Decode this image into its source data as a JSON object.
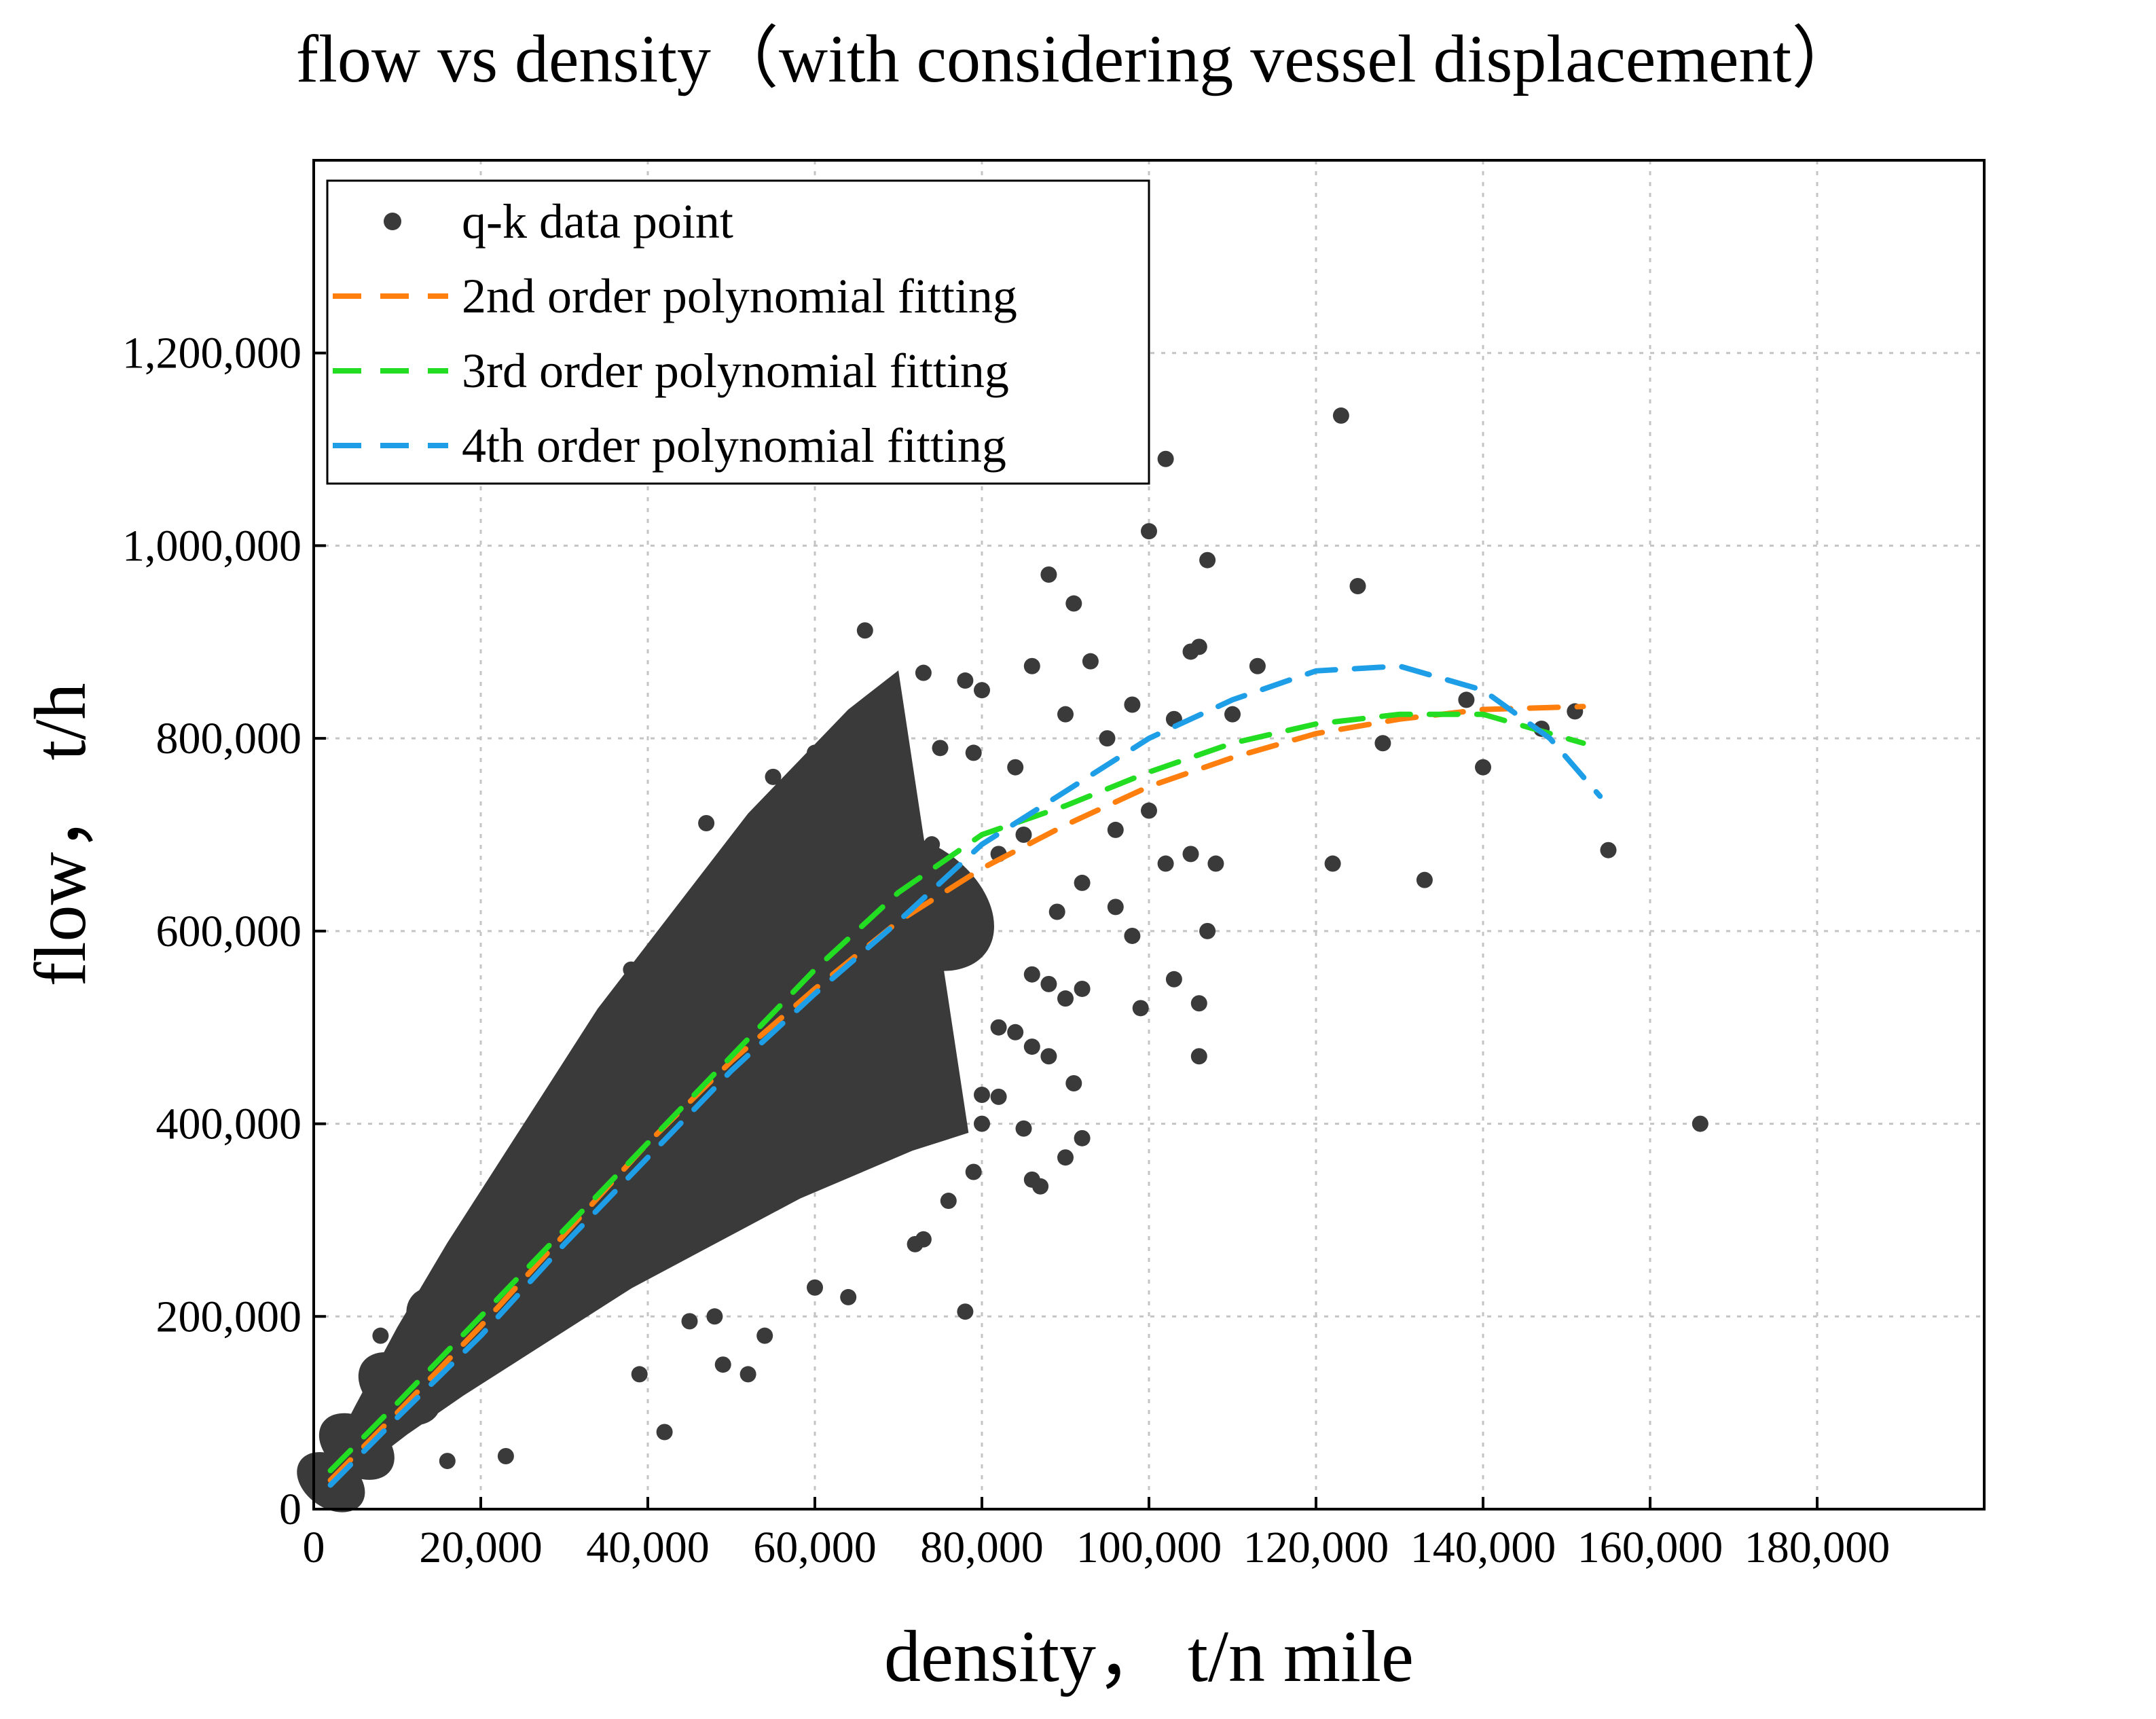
{
  "chart_data": {
    "type": "scatter",
    "title": "flow vs density（with considering vessel displacement）",
    "xlabel": "density，  t/n mile",
    "ylabel": "flow，  t/h",
    "xlim": [
      0,
      200000
    ],
    "ylim": [
      0,
      1400000
    ],
    "x_ticks": [
      0,
      20000,
      40000,
      60000,
      80000,
      100000,
      120000,
      140000,
      160000,
      180000
    ],
    "x_tick_labels": [
      "0",
      "20,000",
      "40,000",
      "60,000",
      "80,000",
      "100,000",
      "120,000",
      "140,000",
      "160,000",
      "180,000"
    ],
    "y_ticks": [
      0,
      200000,
      400000,
      600000,
      800000,
      1000000,
      1200000
    ],
    "y_tick_labels": [
      "0",
      "200,000",
      "400,000",
      "600,000",
      "800,000",
      "1,000,000",
      "1,200,000"
    ],
    "grid": true,
    "legend_position": "top-left",
    "legend": [
      {
        "label": "q-k data point",
        "color": "#3a3a3a",
        "marker": "dot"
      },
      {
        "label": "2nd order polynomial fitting",
        "color": "#ff7f0e",
        "marker": "dash"
      },
      {
        "label": "3rd order polynomial fitting",
        "color": "#22dd22",
        "marker": "dash"
      },
      {
        "label": "4th order polynomial fitting",
        "color": "#1f9ee8",
        "marker": "dash"
      }
    ],
    "scatter_points": [
      [
        123000,
        1135000
      ],
      [
        102000,
        1090000
      ],
      [
        100000,
        1015000
      ],
      [
        107000,
        985000
      ],
      [
        88000,
        970000
      ],
      [
        125000,
        958000
      ],
      [
        91000,
        940000
      ],
      [
        66000,
        912000
      ],
      [
        106000,
        895000
      ],
      [
        105000,
        890000
      ],
      [
        73000,
        868000
      ],
      [
        78000,
        860000
      ],
      [
        113000,
        875000
      ],
      [
        93000,
        880000
      ],
      [
        86000,
        875000
      ],
      [
        80000,
        850000
      ],
      [
        90000,
        825000
      ],
      [
        98000,
        835000
      ],
      [
        103000,
        820000
      ],
      [
        110000,
        825000
      ],
      [
        60000,
        785000
      ],
      [
        55000,
        760000
      ],
      [
        68000,
        770000
      ],
      [
        75000,
        790000
      ],
      [
        79000,
        785000
      ],
      [
        84000,
        770000
      ],
      [
        95000,
        800000
      ],
      [
        138000,
        840000
      ],
      [
        128000,
        795000
      ],
      [
        140000,
        770000
      ],
      [
        147000,
        810000
      ],
      [
        151000,
        828000
      ],
      [
        82000,
        680000
      ],
      [
        85000,
        700000
      ],
      [
        96000,
        705000
      ],
      [
        100000,
        725000
      ],
      [
        102000,
        670000
      ],
      [
        105000,
        680000
      ],
      [
        108000,
        670000
      ],
      [
        89000,
        620000
      ],
      [
        96000,
        625000
      ],
      [
        92000,
        650000
      ],
      [
        98000,
        595000
      ],
      [
        107000,
        600000
      ],
      [
        103000,
        550000
      ],
      [
        106000,
        525000
      ],
      [
        99000,
        520000
      ],
      [
        106000,
        470000
      ],
      [
        122000,
        670000
      ],
      [
        133000,
        653000
      ],
      [
        155000,
        684000
      ],
      [
        166000,
        400000
      ],
      [
        47000,
        712000
      ],
      [
        52000,
        640000
      ],
      [
        44000,
        598000
      ],
      [
        38000,
        560000
      ],
      [
        86000,
        555000
      ],
      [
        88000,
        545000
      ],
      [
        90000,
        530000
      ],
      [
        92000,
        540000
      ],
      [
        82000,
        500000
      ],
      [
        84000,
        495000
      ],
      [
        86000,
        480000
      ],
      [
        88000,
        470000
      ],
      [
        91000,
        442000
      ],
      [
        80000,
        430000
      ],
      [
        82000,
        428000
      ],
      [
        85000,
        395000
      ],
      [
        90000,
        365000
      ],
      [
        92000,
        385000
      ],
      [
        87000,
        335000
      ],
      [
        86000,
        342000
      ],
      [
        80000,
        400000
      ],
      [
        79000,
        350000
      ],
      [
        76000,
        320000
      ],
      [
        78000,
        205000
      ],
      [
        73000,
        280000
      ],
      [
        72000,
        275000
      ],
      [
        64000,
        220000
      ],
      [
        60000,
        230000
      ],
      [
        54000,
        180000
      ],
      [
        48000,
        200000
      ],
      [
        45000,
        195000
      ],
      [
        49000,
        150000
      ],
      [
        42000,
        80000
      ],
      [
        39000,
        140000
      ],
      [
        52000,
        140000
      ],
      [
        23000,
        55000
      ],
      [
        8000,
        180000
      ],
      [
        12000,
        200000
      ],
      [
        15000,
        215000
      ],
      [
        18000,
        195000
      ],
      [
        20000,
        160000
      ],
      [
        14000,
        120000
      ],
      [
        10000,
        90000
      ],
      [
        16000,
        50000
      ],
      [
        5000,
        80000
      ],
      [
        2000,
        30000
      ],
      [
        3000,
        45000
      ],
      [
        4000,
        20000
      ],
      [
        33000,
        410000
      ],
      [
        31000,
        440000
      ],
      [
        36000,
        450000
      ],
      [
        30000,
        380000
      ],
      [
        28000,
        350000
      ],
      [
        25000,
        320000
      ],
      [
        22000,
        300000
      ],
      [
        20000,
        260000
      ],
      [
        64000,
        710000
      ],
      [
        67000,
        735000
      ],
      [
        71000,
        700000
      ],
      [
        74000,
        690000
      ],
      [
        76000,
        650000
      ],
      [
        78000,
        640000
      ],
      [
        70000,
        625000
      ],
      [
        68000,
        600000
      ],
      [
        66000,
        580000
      ],
      [
        69000,
        560000
      ],
      [
        72000,
        540000
      ],
      [
        75000,
        520000
      ]
    ],
    "cloud_data": [
      [
        2000,
        28000
      ],
      [
        5000,
        65000
      ],
      [
        10000,
        125000
      ],
      [
        16000,
        190000
      ],
      [
        22000,
        250000
      ],
      [
        28000,
        310000
      ],
      [
        34000,
        370000
      ],
      [
        40000,
        420000
      ],
      [
        46000,
        470000
      ],
      [
        52000,
        520000
      ],
      [
        58000,
        560000
      ],
      [
        64000,
        600000
      ],
      [
        70000,
        630000
      ]
    ],
    "series": [
      {
        "name": "2nd order polynomial fitting",
        "color": "#ff7f0e",
        "x": [
          2000,
          10000,
          20000,
          30000,
          40000,
          50000,
          60000,
          70000,
          80000,
          90000,
          100000,
          110000,
          120000,
          130000,
          140000,
          152000
        ],
        "y": [
          30000,
          100000,
          190000,
          285000,
          380000,
          465000,
          540000,
          610000,
          665000,
          710000,
          750000,
          780000,
          805000,
          820000,
          830000,
          833000
        ]
      },
      {
        "name": "3rd order polynomial fitting",
        "color": "#22dd22",
        "x": [
          2000,
          10000,
          20000,
          30000,
          40000,
          50000,
          60000,
          70000,
          80000,
          90000,
          100000,
          110000,
          120000,
          130000,
          140000,
          152000
        ],
        "y": [
          40000,
          110000,
          200000,
          290000,
          380000,
          470000,
          560000,
          640000,
          700000,
          730000,
          765000,
          795000,
          815000,
          825000,
          825000,
          795000
        ]
      },
      {
        "name": "4th order polynomial fitting",
        "color": "#1f9ee8",
        "x": [
          2000,
          10000,
          20000,
          30000,
          40000,
          50000,
          60000,
          70000,
          80000,
          90000,
          100000,
          110000,
          120000,
          130000,
          140000,
          148000,
          154000
        ],
        "y": [
          25000,
          95000,
          180000,
          275000,
          365000,
          455000,
          535000,
          610000,
          690000,
          745000,
          800000,
          840000,
          870000,
          875000,
          850000,
          800000,
          740000
        ]
      }
    ]
  }
}
